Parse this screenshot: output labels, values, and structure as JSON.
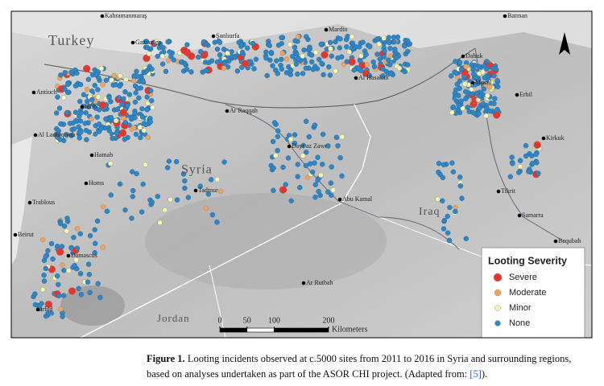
{
  "map": {
    "cities": [
      "Kahramanmaraş",
      "Gaziantep",
      "Şanlıurfa",
      "Mardin",
      "Batman",
      "Dahuk",
      "Mosul",
      "Erbil",
      "Kirkuk",
      "Tikrit",
      "Samarra",
      "Baqubah",
      "Al Hasakah",
      "Ar Raqqah",
      "Dayr az Zawr",
      "Abu Kamal",
      "Antioch",
      "Idlib",
      "Al Ladhiqiyah",
      "Hamah",
      "Homs",
      "Tadmur",
      "Trablous",
      "Beirut",
      "Damascus",
      "Irbid",
      "Ar Rutbah"
    ],
    "countries": [
      "Turkey",
      "Syria",
      "Iraq",
      "Jordan"
    ],
    "legend": {
      "title": "Looting Severity",
      "items": [
        "Severe",
        "Moderate",
        "Minor",
        "None"
      ]
    },
    "scale": {
      "ticks": [
        0,
        50,
        100,
        200
      ],
      "unit": "Kilometers"
    }
  },
  "caption": {
    "label": "Figure 1.",
    "text": "Looting incidents observed at c.5000 sites from 2011 to 2016 in Syria and surrounding regions, based on analyses undertaken as part of the ASOR CHI project. (Adapted from: ",
    "ref": "[5]",
    "end": ")."
  }
}
